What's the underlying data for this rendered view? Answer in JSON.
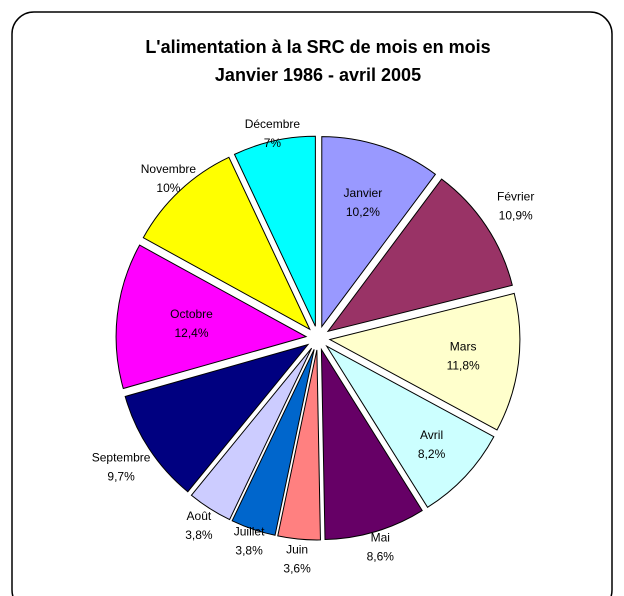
{
  "chart_data": {
    "type": "pie",
    "title": "L'alimentation à la SRC de mois en mois",
    "subtitle": "Janvier 1986 - avril 2005",
    "categories": [
      "Janvier",
      "Février",
      "Mars",
      "Avril",
      "Mai",
      "Juin",
      "Juillet",
      "Août",
      "Septembre",
      "Octobre",
      "Novembre",
      "Décembre"
    ],
    "values": [
      10.2,
      10.9,
      11.8,
      8.2,
      8.6,
      3.6,
      3.8,
      3.8,
      9.7,
      12.4,
      10,
      7
    ],
    "value_labels": [
      "10,2%",
      "10,9%",
      "11,8%",
      "8,2%",
      "8,6%",
      "3,6%",
      "3,8%",
      "3,8%",
      "9,7%",
      "12,4%",
      "10%",
      "7%"
    ],
    "colors": [
      "#9999ff",
      "#993366",
      "#ffffcc",
      "#ccffff",
      "#660066",
      "#ff8080",
      "#0066cc",
      "#ccccff",
      "#000080",
      "#ff00ff",
      "#ffff00",
      "#00ffff"
    ]
  }
}
